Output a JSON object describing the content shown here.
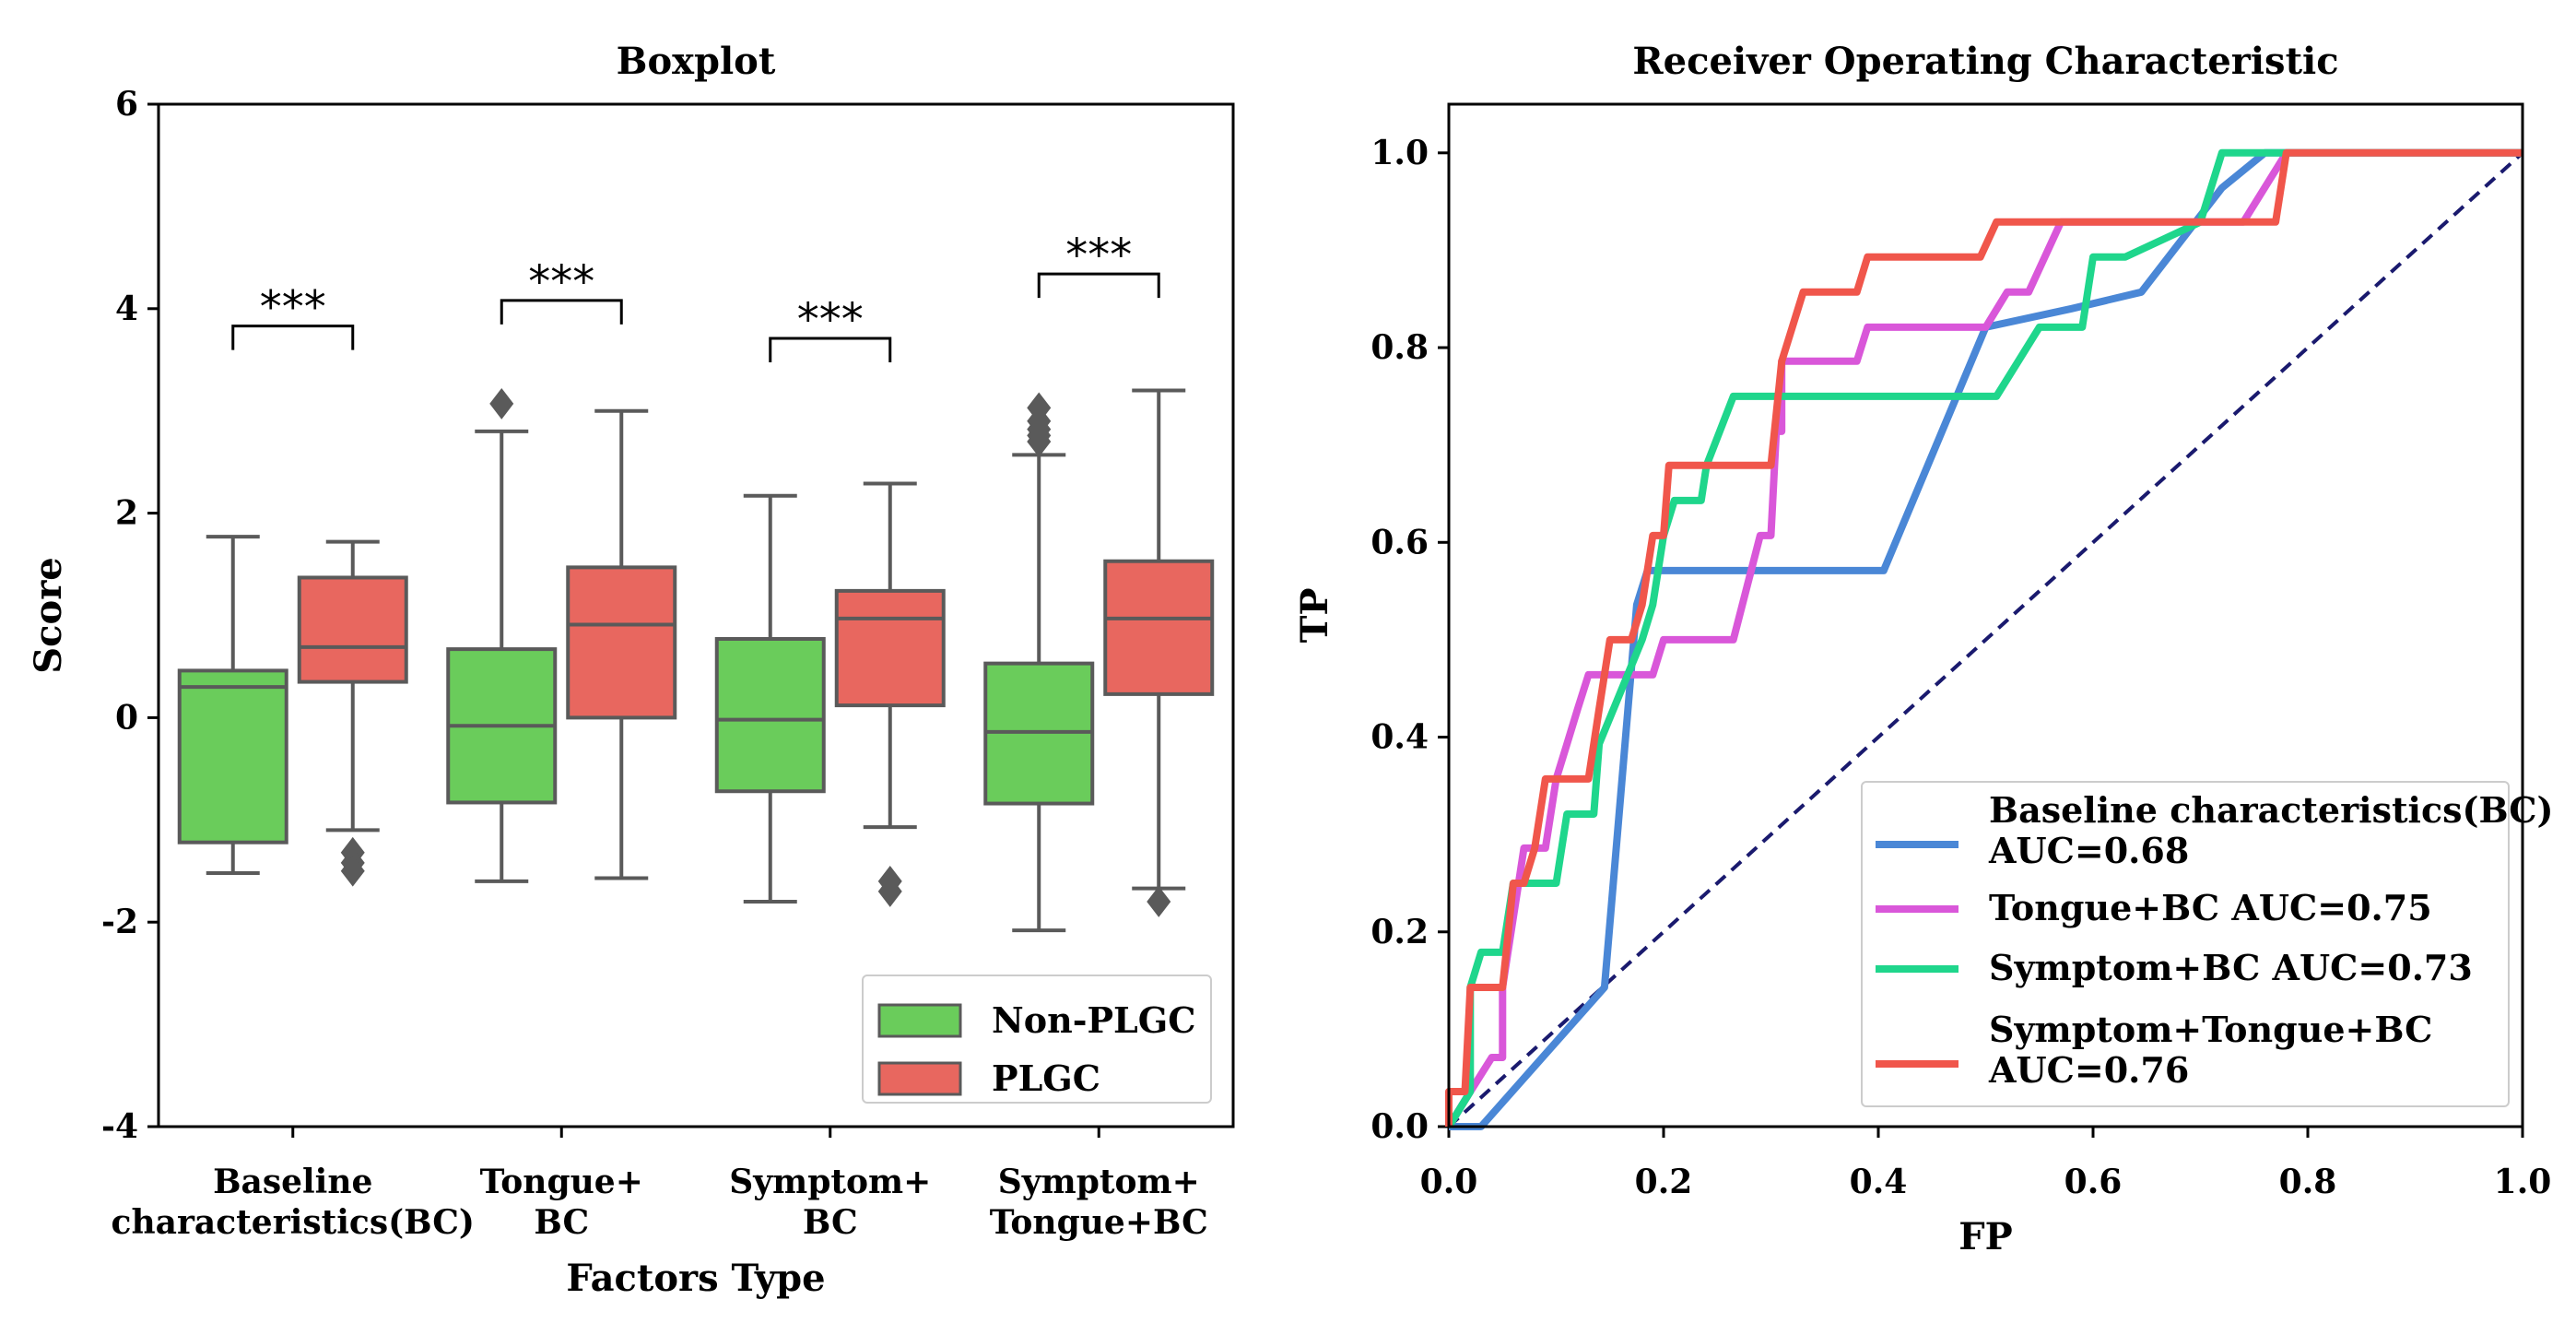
{
  "chart_data": [
    {
      "type": "box",
      "title": "Boxplot",
      "xlabel": "Factors Type",
      "ylabel": "Score",
      "ylim": [
        -4,
        6
      ],
      "yticks": [
        -4,
        -2,
        0,
        2,
        4,
        6
      ],
      "ytick_labels": [
        "-4",
        "-2",
        "0",
        "2",
        "4",
        "6"
      ],
      "categories": [
        {
          "line1": "Baseline",
          "line2": "characteristics(BC)"
        },
        {
          "line1": "Tongue+",
          "line2": "BC"
        },
        {
          "line1": "Symptom+",
          "line2": "BC"
        },
        {
          "line1": "Symptom+",
          "line2": "Tongue+BC"
        }
      ],
      "series": [
        {
          "name": "Non-PLGC",
          "color": "#6acc5b",
          "boxes": [
            {
              "whislo": -1.52,
              "q1": -1.22,
              "med": 0.3,
              "q3": 0.46,
              "whishi": 1.77,
              "fliers": []
            },
            {
              "whislo": -1.6,
              "q1": -0.83,
              "med": -0.08,
              "q3": 0.67,
              "whishi": 2.8,
              "fliers": [
                3.07
              ]
            },
            {
              "whislo": -1.8,
              "q1": -0.72,
              "med": -0.02,
              "q3": 0.77,
              "whishi": 2.17,
              "fliers": []
            },
            {
              "whislo": -2.08,
              "q1": -0.84,
              "med": -0.14,
              "q3": 0.53,
              "whishi": 2.57,
              "fliers": [
                2.7,
                2.76,
                2.82,
                2.9,
                3.03
              ]
            }
          ]
        },
        {
          "name": "PLGC",
          "color": "#e8675f",
          "boxes": [
            {
              "whislo": -1.1,
              "q1": 0.35,
              "med": 0.69,
              "q3": 1.37,
              "whishi": 1.72,
              "fliers": [
                -1.32,
                -1.42,
                -1.5
              ]
            },
            {
              "whislo": -1.57,
              "q1": 0.0,
              "med": 0.91,
              "q3": 1.47,
              "whishi": 3.0,
              "fliers": []
            },
            {
              "whislo": -1.07,
              "q1": 0.12,
              "med": 0.97,
              "q3": 1.24,
              "whishi": 2.29,
              "fliers": [
                -1.6,
                -1.7
              ]
            },
            {
              "whislo": -1.67,
              "q1": 0.23,
              "med": 0.97,
              "q3": 1.53,
              "whishi": 3.2,
              "fliers": [
                -1.8
              ]
            }
          ]
        }
      ],
      "significance": [
        {
          "label": "***",
          "height": 3.83
        },
        {
          "label": "***",
          "height": 4.08
        },
        {
          "label": "***",
          "height": 3.71
        },
        {
          "label": "***",
          "height": 4.34
        }
      ],
      "legend": {
        "position": "lower-right",
        "entries": [
          "Non-PLGC",
          "PLGC"
        ]
      }
    },
    {
      "type": "line",
      "title": "Receiver Operating Characteristic",
      "xlabel": "FP",
      "ylabel": "TP",
      "xlim": [
        0,
        1
      ],
      "ylim": [
        0,
        1.05
      ],
      "xticks": [
        0,
        0.2,
        0.4,
        0.6,
        0.8,
        1.0
      ],
      "xtick_labels": [
        "0.0",
        "0.2",
        "0.4",
        "0.6",
        "0.8",
        "1.0"
      ],
      "yticks": [
        0,
        0.2,
        0.4,
        0.6,
        0.8,
        1.0
      ],
      "ytick_labels": [
        "0.0",
        "0.2",
        "0.4",
        "0.6",
        "0.8",
        "1.0"
      ],
      "diagonal": {
        "color": "#1a1a6e",
        "style": "dashed",
        "points": [
          [
            0,
            0
          ],
          [
            1,
            1
          ]
        ]
      },
      "series": [
        {
          "name": "Baseline characteristics(BC)",
          "auc_text": "AUC=0.68",
          "color": "#4a87d6",
          "points": [
            [
              0,
              0
            ],
            [
              0.03,
              0
            ],
            [
              0.145,
              0.143
            ],
            [
              0.175,
              0.536
            ],
            [
              0.185,
              0.571
            ],
            [
              0.405,
              0.571
            ],
            [
              0.5,
              0.821
            ],
            [
              0.58,
              0.84
            ],
            [
              0.645,
              0.857
            ],
            [
              0.72,
              0.964
            ],
            [
              0.76,
              1.0
            ],
            [
              1.0,
              1.0
            ]
          ]
        },
        {
          "name": "Tongue+BC",
          "auc_text": "AUC=0.75",
          "color": "#d957d9",
          "points": [
            [
              0,
              0
            ],
            [
              0.02,
              0.036
            ],
            [
              0.04,
              0.071
            ],
            [
              0.05,
              0.071
            ],
            [
              0.05,
              0.143
            ],
            [
              0.055,
              0.179
            ],
            [
              0.065,
              0.25
            ],
            [
              0.07,
              0.286
            ],
            [
              0.09,
              0.286
            ],
            [
              0.1,
              0.357
            ],
            [
              0.11,
              0.393
            ],
            [
              0.12,
              0.429
            ],
            [
              0.13,
              0.464
            ],
            [
              0.19,
              0.464
            ],
            [
              0.2,
              0.5
            ],
            [
              0.265,
              0.5
            ],
            [
              0.29,
              0.607
            ],
            [
              0.3,
              0.607
            ],
            [
              0.305,
              0.714
            ],
            [
              0.31,
              0.714
            ],
            [
              0.31,
              0.786
            ],
            [
              0.38,
              0.786
            ],
            [
              0.39,
              0.821
            ],
            [
              0.5,
              0.821
            ],
            [
              0.52,
              0.857
            ],
            [
              0.54,
              0.857
            ],
            [
              0.57,
              0.929
            ],
            [
              0.74,
              0.929
            ],
            [
              0.78,
              1.0
            ],
            [
              1.0,
              1.0
            ]
          ]
        },
        {
          "name": "Symptom+BC",
          "auc_text": "AUC=0.73",
          "color": "#1fd68c",
          "points": [
            [
              0,
              0
            ],
            [
              0.02,
              0.036
            ],
            [
              0.02,
              0.143
            ],
            [
              0.03,
              0.179
            ],
            [
              0.05,
              0.179
            ],
            [
              0.06,
              0.25
            ],
            [
              0.1,
              0.25
            ],
            [
              0.11,
              0.321
            ],
            [
              0.135,
              0.321
            ],
            [
              0.14,
              0.393
            ],
            [
              0.18,
              0.5
            ],
            [
              0.19,
              0.536
            ],
            [
              0.2,
              0.607
            ],
            [
              0.21,
              0.643
            ],
            [
              0.235,
              0.643
            ],
            [
              0.24,
              0.679
            ],
            [
              0.265,
              0.75
            ],
            [
              0.51,
              0.75
            ],
            [
              0.55,
              0.821
            ],
            [
              0.59,
              0.821
            ],
            [
              0.6,
              0.893
            ],
            [
              0.63,
              0.893
            ],
            [
              0.7,
              0.929
            ],
            [
              0.72,
              1.0
            ],
            [
              1.0,
              1.0
            ]
          ]
        },
        {
          "name": "Symptom+Tongue+BC",
          "auc_text": "AUC=0.76",
          "color": "#f0564b",
          "points": [
            [
              0,
              0
            ],
            [
              0,
              0.036
            ],
            [
              0.015,
              0.036
            ],
            [
              0.02,
              0.143
            ],
            [
              0.05,
              0.143
            ],
            [
              0.06,
              0.25
            ],
            [
              0.07,
              0.25
            ],
            [
              0.08,
              0.286
            ],
            [
              0.09,
              0.357
            ],
            [
              0.13,
              0.357
            ],
            [
              0.14,
              0.429
            ],
            [
              0.15,
              0.5
            ],
            [
              0.17,
              0.5
            ],
            [
              0.18,
              0.536
            ],
            [
              0.19,
              0.607
            ],
            [
              0.2,
              0.607
            ],
            [
              0.205,
              0.679
            ],
            [
              0.3,
              0.679
            ],
            [
              0.31,
              0.786
            ],
            [
              0.33,
              0.857
            ],
            [
              0.38,
              0.857
            ],
            [
              0.39,
              0.893
            ],
            [
              0.495,
              0.893
            ],
            [
              0.51,
              0.929
            ],
            [
              0.77,
              0.929
            ],
            [
              0.78,
              1.0
            ],
            [
              1.0,
              1.0
            ]
          ]
        }
      ],
      "legend": {
        "position": "lower-right"
      }
    }
  ]
}
